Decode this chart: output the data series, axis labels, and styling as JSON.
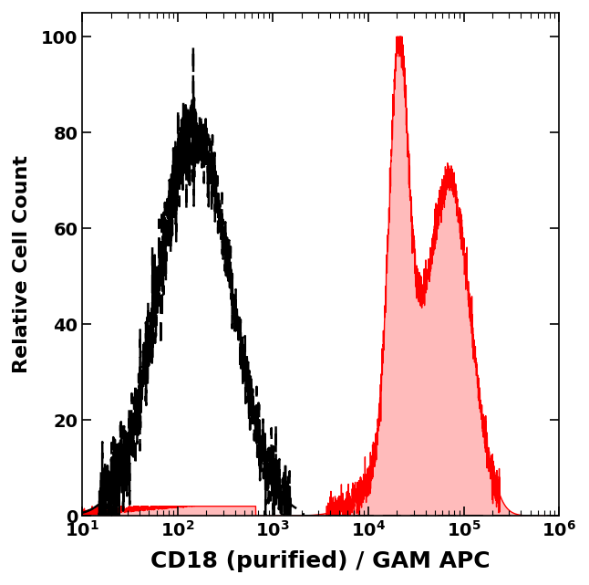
{
  "title": "",
  "xlabel": "CD18 (purified) / GAM APC",
  "ylabel": "Relative Cell Count",
  "xlim": [
    10,
    1000000
  ],
  "ylim": [
    0,
    105
  ],
  "yticks": [
    0,
    20,
    40,
    60,
    80,
    100
  ],
  "xlabel_fontsize": 18,
  "ylabel_fontsize": 16,
  "tick_fontsize": 14,
  "background_color": "#ffffff",
  "dashed_color": "#000000",
  "filled_line_color": "#ff0000",
  "filled_face_color": "#ffbbbb",
  "dashed_peak_log": 2.18,
  "dashed_sigma": 0.38,
  "dashed_amplitude": 98,
  "red_peak1_log": 4.32,
  "red_peak1_sigma": 0.1,
  "red_peak1_amp": 100,
  "red_peak2_log": 4.88,
  "red_peak2_sigma": 0.2,
  "red_peak2_amp": 68,
  "red_broad_log": 4.55,
  "red_broad_sigma": 0.35,
  "red_broad_amp": 35
}
